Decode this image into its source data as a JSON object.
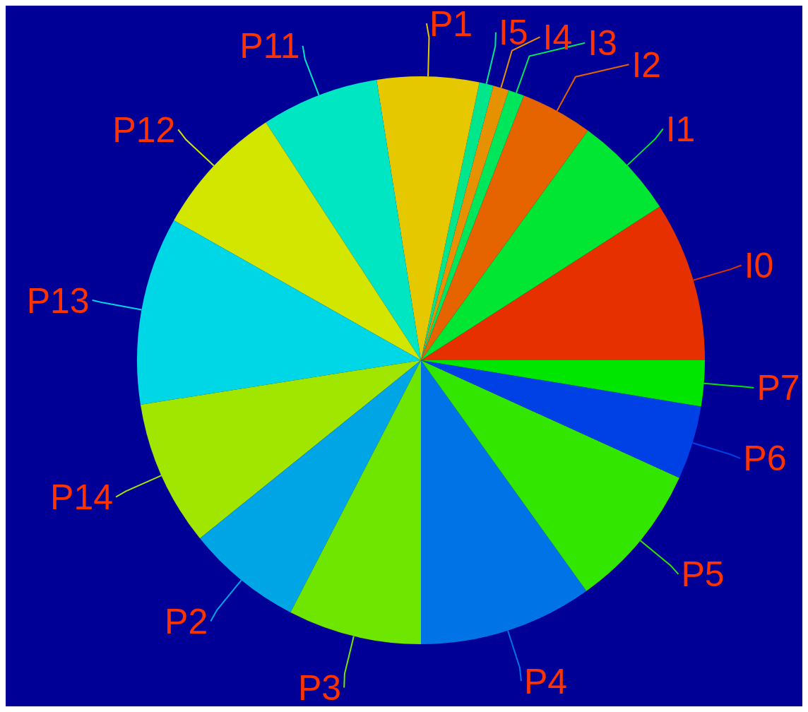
{
  "chart_data": {
    "type": "pie",
    "categories": [
      "I0",
      "I1",
      "I2",
      "I3",
      "I4",
      "I5",
      "P1",
      "P11",
      "P12",
      "P13",
      "P14",
      "P2",
      "P3",
      "P4",
      "P5",
      "P6",
      "P7"
    ],
    "values": [
      9.1,
      5.9,
      4.1,
      0.9,
      0.9,
      0.8,
      5.8,
      6.7,
      7.6,
      10.7,
      8.3,
      6.6,
      7.6,
      9.9,
      8.3,
      4.2,
      2.6
    ],
    "colors": [
      "#e63000",
      "#00e632",
      "#e66400",
      "#00e65a",
      "#e69100",
      "#00e68c",
      "#e6c800",
      "#00e6c3",
      "#d2e600",
      "#00d7e6",
      "#a0e600",
      "#00a5e6",
      "#6ee600",
      "#0073e6",
      "#32e600",
      "#0041e6",
      "#00e600"
    ]
  }
}
